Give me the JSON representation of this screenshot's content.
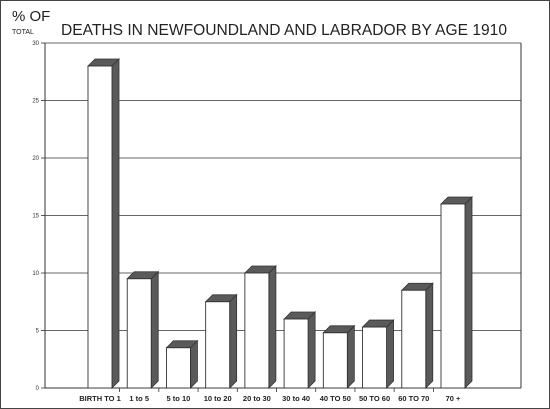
{
  "chart_data": {
    "type": "bar",
    "title": "DEATHS IN NEWFOUNDLAND AND LABRADOR BY AGE  1910",
    "ylabel": "% OF",
    "ylabel_sub": "TOTAL",
    "xlabel": "",
    "ylim": [
      0,
      30
    ],
    "yticks": [
      0,
      5,
      10,
      15,
      20,
      25,
      30
    ],
    "grid": true,
    "legend": "none",
    "categories": [
      "BIRTH TO 1",
      "1 to 5",
      "5 to 10",
      "10 to 20",
      "20 to 30",
      "30 to 40",
      "40 TO 50",
      "50 TO 60",
      "60 TO 70",
      "70 +"
    ],
    "values": [
      28.0,
      9.5,
      3.5,
      7.5,
      10.0,
      6.0,
      4.8,
      5.3,
      8.5,
      16.0
    ],
    "colors": {
      "bar_face": "#ffffff",
      "bar_side": "#5a5a5a",
      "bar_edge": "#333333",
      "grid": "#333333"
    }
  }
}
